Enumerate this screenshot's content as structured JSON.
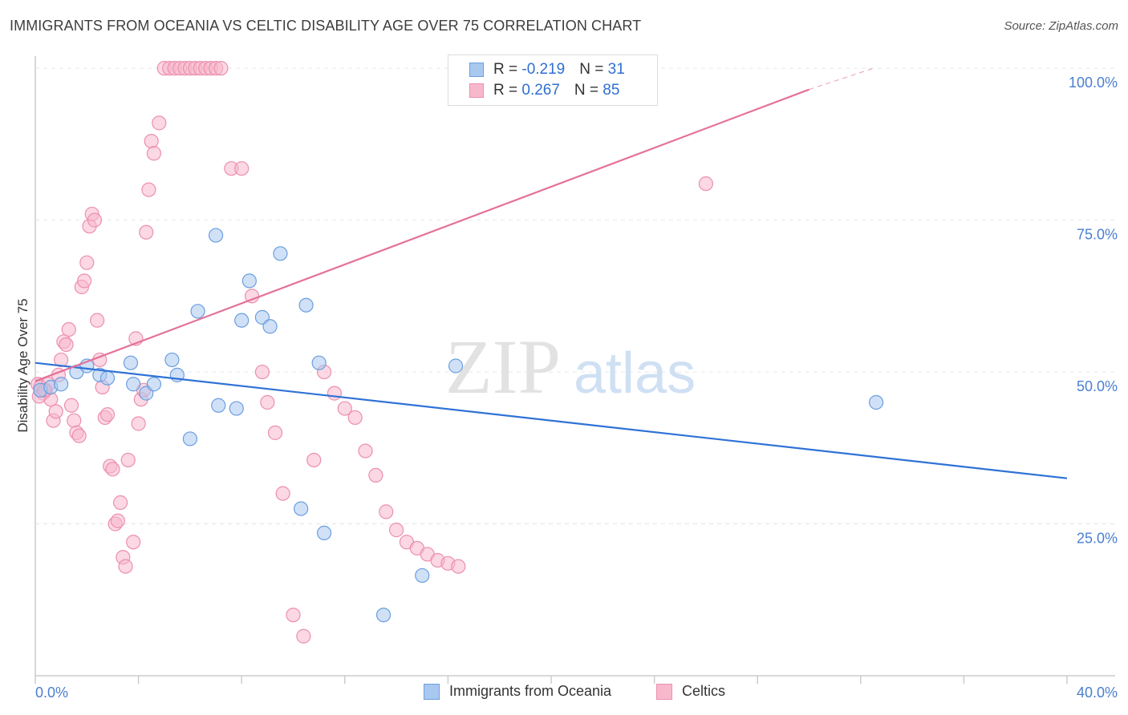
{
  "title": "IMMIGRANTS FROM OCEANIA VS CELTIC DISABILITY AGE OVER 75 CORRELATION CHART",
  "source": "Source: ZipAtlas.com",
  "watermark": {
    "zip": "ZIP",
    "atlas": "atlas"
  },
  "legend_top": {
    "rows": [
      {
        "r_label": "R = ",
        "r_value": "-0.219",
        "n_label": "N = ",
        "n_value": "31"
      },
      {
        "r_label": "R = ",
        "r_value": "0.267",
        "n_label": "N = ",
        "n_value": "85"
      }
    ]
  },
  "legend_bottom": {
    "items": [
      {
        "label": "Immigrants from Oceania"
      },
      {
        "label": "Celtics"
      }
    ]
  },
  "colors": {
    "blue_fill": "#a9c8f0",
    "blue_stroke": "#6a9ee0",
    "blue_line": "#2f72d6",
    "pink_fill": "#f7b8cc",
    "pink_stroke": "#ec8fae",
    "pink_line": "#e4719a",
    "tick_text": "#4b7fcf"
  },
  "chart_data": {
    "type": "scatter",
    "title": "IMMIGRANTS FROM OCEANIA VS CELTIC DISABILITY AGE OVER 75 CORRELATION CHART",
    "xlabel": "",
    "ylabel": "Disability Age Over 75",
    "xlim": [
      0,
      40
    ],
    "ylim": [
      0,
      102
    ],
    "x_tick_labels": [
      "0.0%",
      "40.0%"
    ],
    "y_tick_labels": [
      "25.0%",
      "50.0%",
      "75.0%",
      "100.0%"
    ],
    "y_ticks": [
      25,
      50,
      75,
      100
    ],
    "grid": true,
    "legend_position": "top-center",
    "series": [
      {
        "name": "Immigrants from Oceania",
        "color": "#a9c8f0",
        "x": [
          0.2,
          1.6,
          2.0,
          2.5,
          2.8,
          3.7,
          3.8,
          4.3,
          4.6,
          5.3,
          5.5,
          6.0,
          6.3,
          7.0,
          7.1,
          7.8,
          8.0,
          8.3,
          8.8,
          9.1,
          9.5,
          10.3,
          10.5,
          11.0,
          11.2,
          13.5,
          15.0,
          16.3,
          32.6,
          0.6,
          1.0
        ],
        "y": [
          47.0,
          50.0,
          51.0,
          49.5,
          49.0,
          51.5,
          48.0,
          46.5,
          48.0,
          52.0,
          49.5,
          39.0,
          60.0,
          72.5,
          44.5,
          44.0,
          58.5,
          65.0,
          59.0,
          57.5,
          69.5,
          27.5,
          61.0,
          51.5,
          23.5,
          10.0,
          16.5,
          51.0,
          45.0,
          47.5,
          48.0
        ]
      },
      {
        "name": "Celtics",
        "color": "#f7b8cc",
        "x": [
          0.1,
          0.2,
          0.3,
          0.4,
          0.5,
          0.6,
          0.7,
          0.8,
          0.9,
          1.0,
          1.1,
          1.2,
          1.3,
          1.4,
          1.5,
          1.6,
          1.7,
          1.8,
          1.9,
          2.0,
          2.1,
          2.2,
          2.3,
          2.4,
          2.5,
          2.6,
          2.7,
          2.8,
          2.9,
          3.0,
          3.1,
          3.2,
          3.3,
          3.4,
          3.5,
          3.6,
          3.8,
          3.9,
          4.0,
          4.1,
          4.2,
          4.3,
          4.4,
          4.5,
          4.6,
          4.8,
          5.0,
          5.2,
          5.4,
          5.6,
          5.8,
          6.0,
          6.2,
          6.4,
          6.6,
          6.8,
          7.0,
          7.2,
          7.6,
          8.0,
          8.4,
          8.8,
          9.0,
          9.3,
          9.6,
          10.0,
          10.4,
          10.8,
          11.2,
          11.6,
          12.0,
          12.4,
          12.8,
          13.2,
          13.6,
          14.0,
          14.4,
          14.8,
          15.2,
          15.6,
          16.0,
          16.4,
          26.0,
          0.15,
          0.35
        ],
        "y": [
          48.0,
          47.5,
          46.5,
          47.0,
          48.0,
          45.5,
          42.0,
          43.5,
          49.5,
          52.0,
          55.0,
          54.5,
          57.0,
          44.5,
          42.0,
          40.0,
          39.5,
          64.0,
          65.0,
          68.0,
          74.0,
          76.0,
          75.0,
          58.5,
          52.0,
          47.5,
          42.5,
          43.0,
          34.5,
          34.0,
          25.0,
          25.5,
          28.5,
          19.5,
          18.0,
          35.5,
          22.0,
          55.5,
          41.5,
          45.5,
          47.0,
          73.0,
          80.0,
          88.0,
          86.0,
          91.0,
          100.0,
          100.0,
          100.0,
          100.0,
          100.0,
          100.0,
          100.0,
          100.0,
          100.0,
          100.0,
          100.0,
          100.0,
          83.5,
          83.5,
          62.5,
          50.0,
          45.0,
          40.0,
          30.0,
          10.0,
          6.5,
          35.5,
          50.0,
          46.5,
          44.0,
          42.5,
          37.0,
          33.0,
          27.0,
          24.0,
          22.0,
          21.0,
          20.0,
          19.0,
          18.5,
          18.0,
          81.0,
          46.0,
          47.0
        ]
      }
    ],
    "trendlines": [
      {
        "series": "Immigrants from Oceania",
        "x": [
          0,
          40
        ],
        "y": [
          51.5,
          32.5
        ]
      },
      {
        "series": "Celtics",
        "x": [
          0,
          30,
          32.5
        ],
        "y": [
          48.5,
          96.5,
          100.0
        ]
      }
    ]
  }
}
